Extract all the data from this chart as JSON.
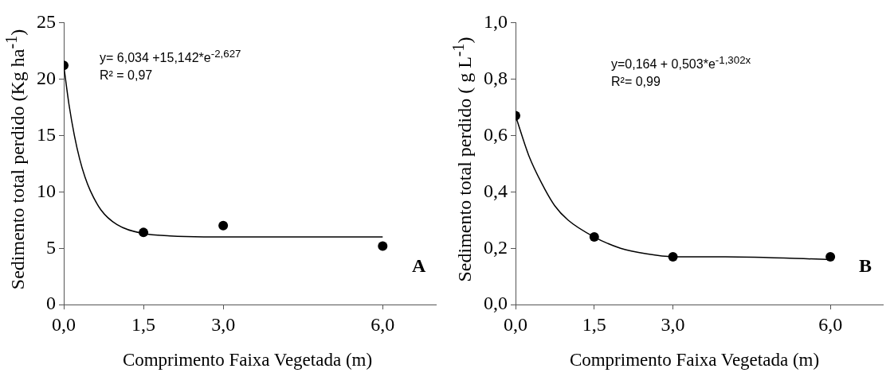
{
  "chart_data": [
    {
      "type": "scatter",
      "xlabel": "Comprimento Faixa Vegetada (m)",
      "ylabel": "Sedimento total perdido (Kg ha$^{-1}$)",
      "xlim": [
        0,
        7
      ],
      "xticks": [
        {
          "value": 0,
          "label": "0,0"
        },
        {
          "value": 1.5,
          "label": "1,5"
        },
        {
          "value": 3,
          "label": "3,0"
        },
        {
          "value": 6,
          "label": "6,0"
        }
      ],
      "ylim": [
        0,
        25
      ],
      "yticks": [
        0,
        5,
        10,
        15,
        20,
        25
      ],
      "grid": false,
      "legend": false,
      "annotations": [
        "y= 6,034 +15,142*e$^{-2,627}$",
        "R² = 0,97",
        "A"
      ],
      "series": [
        {
          "type": "line",
          "marker": "none",
          "color": "#000000",
          "x": [
            0,
            0.1,
            0.2,
            0.3,
            0.4,
            0.5,
            0.7,
            1,
            1.5,
            2,
            3,
            4,
            6
          ],
          "values": [
            21.2,
            17.7,
            15.0,
            12.9,
            11.3,
            10.1,
            8.4,
            7.1,
            6.3,
            6.1,
            6.0,
            6.0,
            6.0
          ]
        },
        {
          "marker": "circle",
          "color": "#000000",
          "x": [
            0,
            1.5,
            3,
            6
          ],
          "values": [
            21.2,
            6.4,
            7.0,
            5.2
          ]
        }
      ]
    },
    {
      "type": "scatter",
      "xlabel": "Comprimento Faixa Vegetada (m)",
      "ylabel": "Sedimento total perdido ( g L$^{-1}$)",
      "xlim": [
        0,
        7
      ],
      "xticks": [
        {
          "value": 0,
          "label": "0,0"
        },
        {
          "value": 1.5,
          "label": "1,5"
        },
        {
          "value": 3,
          "label": "3,0"
        },
        {
          "value": 6,
          "label": "6,0"
        }
      ],
      "ylim": [
        0,
        1
      ],
      "yticks": [
        {
          "value": 0,
          "label": "0,0"
        },
        {
          "value": 0.2,
          "label": "0,2"
        },
        {
          "value": 0.4,
          "label": "0,4"
        },
        {
          "value": 0.6,
          "label": "0,6"
        },
        {
          "value": 0.8,
          "label": "0,8"
        },
        {
          "value": 1,
          "label": "1,0"
        }
      ],
      "grid": false,
      "legend": false,
      "annotations": [
        "y=0,164 + 0,503*e$^{-1,302x}$",
        "R²= 0,99",
        "B"
      ],
      "series": [
        {
          "type": "line",
          "marker": "none",
          "color": "#000000",
          "x": [
            0,
            0.25,
            0.5,
            0.75,
            1,
            1.5,
            2,
            2.5,
            3,
            4,
            6
          ],
          "values": [
            0.67,
            0.53,
            0.43,
            0.35,
            0.3,
            0.24,
            0.2,
            0.18,
            0.17,
            0.17,
            0.16
          ]
        },
        {
          "marker": "circle",
          "color": "#000000",
          "x": [
            0,
            1.5,
            3,
            6
          ],
          "values": [
            0.67,
            0.24,
            0.17,
            0.17
          ]
        }
      ]
    }
  ]
}
